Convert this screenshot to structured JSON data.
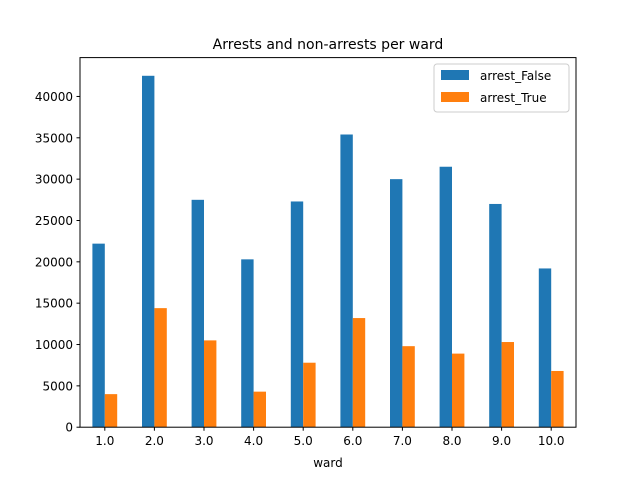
{
  "chart_data": {
    "type": "bar",
    "title": "Arrests and non-arrests per ward",
    "xlabel": "ward",
    "ylabel": "",
    "categories": [
      "1.0",
      "2.0",
      "3.0",
      "4.0",
      "5.0",
      "6.0",
      "7.0",
      "8.0",
      "9.0",
      "10.0"
    ],
    "series": [
      {
        "name": "arrest_False",
        "color": "#1f77b4",
        "values": [
          22200,
          42500,
          27500,
          20300,
          27300,
          35400,
          30000,
          31500,
          27000,
          19200
        ]
      },
      {
        "name": "arrest_True",
        "color": "#ff7f0e",
        "values": [
          4000,
          14400,
          10500,
          4300,
          7800,
          13200,
          9800,
          8900,
          10300,
          6800
        ]
      }
    ],
    "yticks": [
      "0",
      "5000",
      "10000",
      "15000",
      "20000",
      "25000",
      "30000",
      "35000",
      "40000"
    ],
    "ylim": [
      0,
      44700
    ],
    "grid": false,
    "legend": "top-right"
  }
}
